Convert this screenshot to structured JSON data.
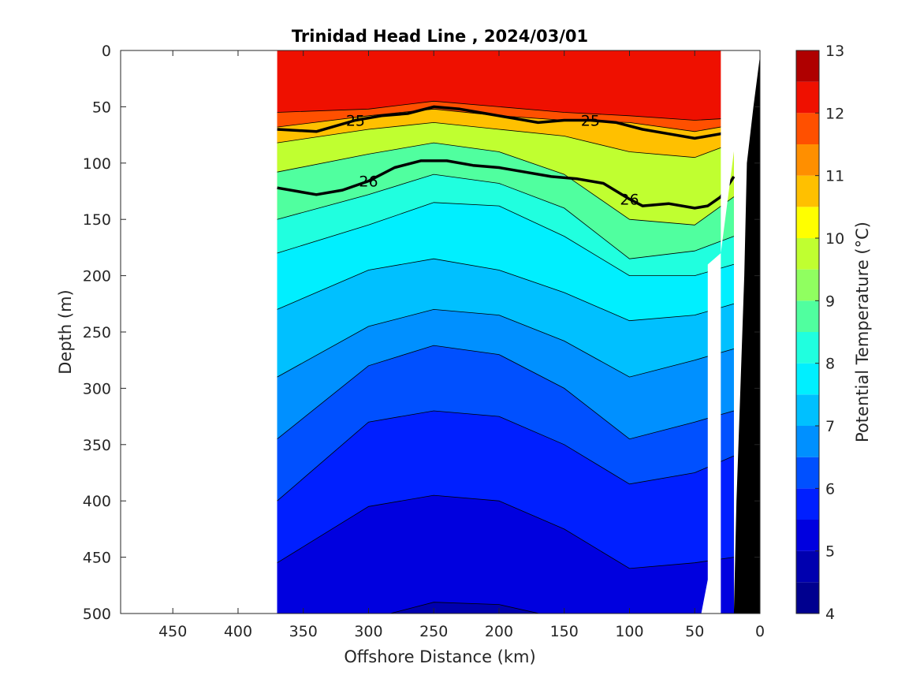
{
  "chart_data": {
    "type": "heatmap",
    "subtype": "filled-contour-section",
    "title": "Trinidad Head Line , 2024/03/01",
    "xlabel": "Offshore Distance (km)",
    "ylabel": "Depth (m)",
    "colorbar_label": "Potential Temperature (°C)",
    "xlim": [
      490,
      0
    ],
    "ylim": [
      0,
      500
    ],
    "x_reversed": true,
    "y_reversed": true,
    "x_ticks": [
      450,
      400,
      350,
      300,
      250,
      200,
      150,
      100,
      50,
      0
    ],
    "y_ticks": [
      0,
      50,
      100,
      150,
      200,
      250,
      300,
      350,
      400,
      450,
      500
    ],
    "colorbar_ticks": [
      4,
      5,
      6,
      7,
      8,
      9,
      10,
      11,
      12,
      13
    ],
    "colorbar_range": [
      4,
      13
    ],
    "contour_step": 0.5,
    "data_extent_km": [
      370,
      20
    ],
    "color_levels": [
      {
        "from": 4.0,
        "to": 4.5,
        "color": "#00008f"
      },
      {
        "from": 4.5,
        "to": 5.0,
        "color": "#0000af"
      },
      {
        "from": 5.0,
        "to": 5.5,
        "color": "#0000df"
      },
      {
        "from": 5.5,
        "to": 6.0,
        "color": "#001fff"
      },
      {
        "from": 6.0,
        "to": 6.5,
        "color": "#0050ff"
      },
      {
        "from": 6.5,
        "to": 7.0,
        "color": "#0090ff"
      },
      {
        "from": 7.0,
        "to": 7.5,
        "color": "#00c0ff"
      },
      {
        "from": 7.5,
        "to": 8.0,
        "color": "#00efff"
      },
      {
        "from": 8.0,
        "to": 8.5,
        "color": "#20ffdf"
      },
      {
        "from": 8.5,
        "to": 9.0,
        "color": "#50ff9f"
      },
      {
        "from": 9.0,
        "to": 9.5,
        "color": "#90ff60"
      },
      {
        "from": 9.5,
        "to": 10.0,
        "color": "#c0ff30"
      },
      {
        "from": 10.0,
        "to": 10.5,
        "color": "#ffff00"
      },
      {
        "from": 10.5,
        "to": 11.0,
        "color": "#ffc000"
      },
      {
        "from": 11.0,
        "to": 11.5,
        "color": "#ff8f00"
      },
      {
        "from": 11.5,
        "to": 12.0,
        "color": "#ff5000"
      },
      {
        "from": 12.0,
        "to": 12.5,
        "color": "#ef1000"
      },
      {
        "from": 12.5,
        "to": 13.0,
        "color": "#af0000"
      }
    ],
    "series": [
      {
        "name": "25",
        "kind": "density-contour",
        "x": [
          370,
          340,
          310,
          290,
          270,
          250,
          230,
          210,
          190,
          170,
          150,
          130,
          110,
          90,
          70,
          50,
          30,
          20
        ],
        "y": [
          70,
          72,
          62,
          58,
          56,
          50,
          52,
          56,
          60,
          64,
          62,
          62,
          64,
          70,
          74,
          78,
          74,
          68
        ]
      },
      {
        "name": "26",
        "kind": "density-contour",
        "x": [
          370,
          340,
          320,
          300,
          280,
          260,
          240,
          220,
          200,
          180,
          160,
          140,
          120,
          100,
          90,
          70,
          50,
          40,
          30,
          20
        ],
        "y": [
          122,
          128,
          124,
          116,
          104,
          98,
          98,
          102,
          104,
          108,
          112,
          114,
          118,
          132,
          138,
          136,
          140,
          138,
          130,
          112
        ]
      }
    ],
    "isotherms_approx": [
      {
        "temp": 12.0,
        "x": [
          370,
          300,
          250,
          200,
          150,
          100,
          50,
          20
        ],
        "y": [
          55,
          52,
          45,
          50,
          55,
          58,
          62,
          60
        ]
      },
      {
        "temp": 11.0,
        "x": [
          370,
          300,
          250,
          200,
          150,
          100,
          50,
          20
        ],
        "y": [
          68,
          58,
          52,
          58,
          62,
          64,
          72,
          66
        ]
      },
      {
        "temp": 10.0,
        "x": [
          370,
          300,
          250,
          200,
          150,
          100,
          50,
          20
        ],
        "y": [
          82,
          70,
          64,
          70,
          76,
          90,
          95,
          82
        ]
      },
      {
        "temp": 9.0,
        "x": [
          370,
          300,
          250,
          200,
          150,
          100,
          50,
          20
        ],
        "y": [
          108,
          92,
          82,
          90,
          110,
          150,
          155,
          130
        ]
      },
      {
        "temp": 8.5,
        "x": [
          370,
          300,
          250,
          200,
          150,
          100,
          50,
          20
        ],
        "y": [
          150,
          128,
          110,
          118,
          140,
          185,
          178,
          165
        ]
      },
      {
        "temp": 8.0,
        "x": [
          370,
          300,
          250,
          200,
          150,
          100,
          50,
          20
        ],
        "y": [
          180,
          155,
          135,
          138,
          165,
          200,
          200,
          190
        ]
      },
      {
        "temp": 7.5,
        "x": [
          370,
          300,
          250,
          200,
          150,
          100,
          50,
          20
        ],
        "y": [
          230,
          195,
          185,
          195,
          215,
          240,
          235,
          225
        ]
      },
      {
        "temp": 7.0,
        "x": [
          370,
          300,
          250,
          200,
          150,
          100,
          50,
          20
        ],
        "y": [
          290,
          245,
          230,
          235,
          258,
          290,
          275,
          265
        ]
      },
      {
        "temp": 6.5,
        "x": [
          370,
          300,
          250,
          200,
          150,
          100,
          50,
          20
        ],
        "y": [
          345,
          280,
          262,
          270,
          300,
          345,
          330,
          320
        ]
      },
      {
        "temp": 6.0,
        "x": [
          370,
          300,
          250,
          200,
          150,
          100,
          50,
          20
        ],
        "y": [
          400,
          330,
          320,
          325,
          350,
          385,
          375,
          360
        ]
      },
      {
        "temp": 5.5,
        "x": [
          370,
          300,
          250,
          200,
          150,
          100,
          50,
          20
        ],
        "y": [
          455,
          405,
          395,
          400,
          425,
          460,
          455,
          450
        ]
      },
      {
        "temp": 5.0,
        "x": [
          370,
          300,
          250,
          200,
          150,
          100,
          50,
          20
        ],
        "y": [
          510,
          505,
          490,
          492,
          505,
          520,
          515,
          510
        ]
      }
    ],
    "bathymetry": {
      "color": "#000000",
      "x": [
        20,
        18,
        15,
        12,
        10,
        5,
        0,
        0,
        30
      ],
      "y": [
        500,
        400,
        300,
        200,
        100,
        50,
        5,
        500,
        500
      ]
    }
  }
}
